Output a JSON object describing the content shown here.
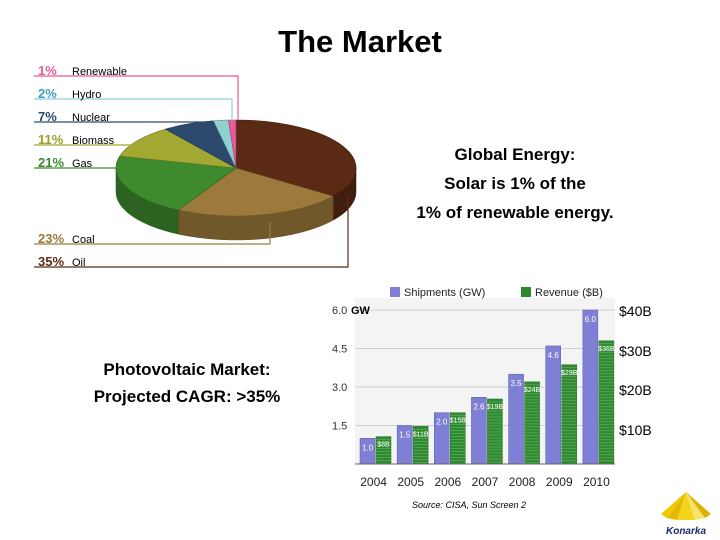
{
  "title": "The Market",
  "pie": {
    "legend": [
      {
        "pct": "1%",
        "name": "Renewable",
        "color": "#ea5a9a"
      },
      {
        "pct": "2%",
        "name": "Hydro",
        "color": "#8fd1d1"
      },
      {
        "pct": "7%",
        "name": "Nuclear",
        "color": "#2b4a6e"
      },
      {
        "pct": "11%",
        "name": "Biomass",
        "color": "#a3a832"
      },
      {
        "pct": "21%",
        "name": "Gas",
        "color": "#3e8a2e"
      },
      {
        "pct": "23%",
        "name": "Coal",
        "color": "#9b7a3c"
      },
      {
        "pct": "35%",
        "name": "Oil",
        "color": "#5a2a14"
      }
    ]
  },
  "global_energy": {
    "line1": "Global Energy:",
    "line2": "Solar is 1% of the",
    "line3": "1% of renewable energy."
  },
  "pv_market": {
    "line1": "Photovoltaic Market:",
    "line2": "Projected CAGR: >35%"
  },
  "revenue_axis": [
    "$40B",
    "$30B",
    "$20B",
    "$10B"
  ],
  "source": "Source: CISA, Sun Screen 2",
  "logo_text": "Konarka",
  "colors": {
    "shipments": "#7f7fd6",
    "revenue": "#2f8a2f"
  },
  "chart_data": [
    {
      "type": "pie",
      "categories": [
        "Oil",
        "Coal",
        "Gas",
        "Biomass",
        "Nuclear",
        "Hydro",
        "Renewable"
      ],
      "values": [
        35,
        23,
        21,
        11,
        7,
        2,
        1
      ],
      "title": "",
      "legend": "left"
    },
    {
      "type": "bar",
      "categories": [
        "2004",
        "2005",
        "2006",
        "2007",
        "2008",
        "2009",
        "2010"
      ],
      "series": [
        {
          "name": "Shipments (GW)",
          "values": [
            1.0,
            1.5,
            2.0,
            2.6,
            3.5,
            4.6,
            6.0
          ],
          "labels": [
            "1.0",
            "1.5",
            "2.0",
            "2.6",
            "3.5",
            "4.6",
            "6.0"
          ]
        },
        {
          "name": "Revenue ($B)",
          "values": [
            8,
            11,
            15,
            19,
            24,
            29,
            36
          ],
          "labels": [
            "$8B",
            "$11B",
            "$15B",
            "$19B",
            "$24B",
            "$29B",
            "$36B"
          ]
        }
      ],
      "y_ticks": [
        "6.0",
        "4.5",
        "3.0",
        "1.5"
      ],
      "ylabel": "GW",
      "ylim": [
        0,
        6.0
      ],
      "y2lim": [
        0,
        45
      ],
      "legend": "top"
    }
  ]
}
